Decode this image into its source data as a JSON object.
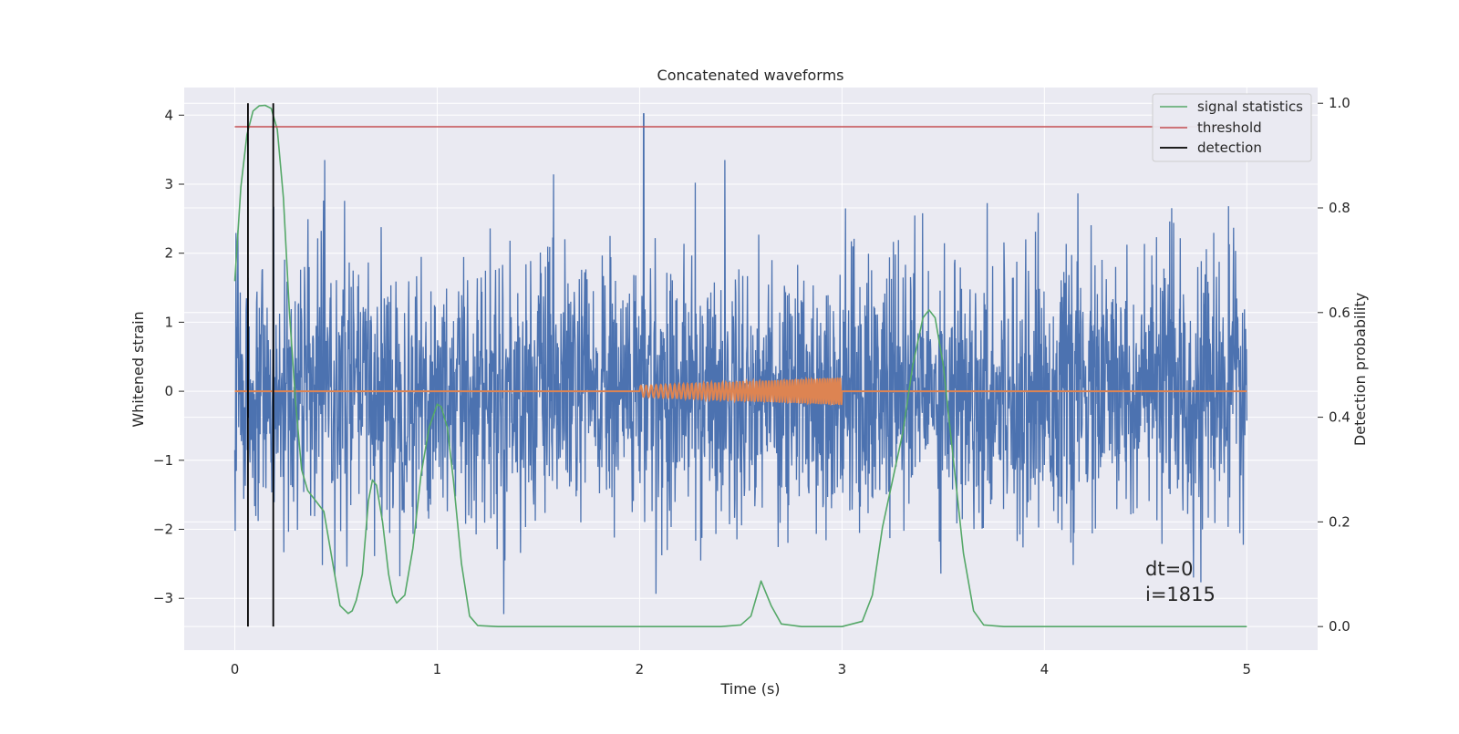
{
  "chart_data": {
    "type": "line",
    "title": "Concatenated waveforms",
    "xlabel": "Time (s)",
    "ylabel": "Whitened strain",
    "y2label": "Detection probability",
    "xlim": [
      -0.25,
      5.35
    ],
    "ylim": [
      -3.75,
      4.4
    ],
    "y2lim": [
      -0.045,
      1.03
    ],
    "xticks": [
      0,
      1,
      2,
      3,
      4,
      5
    ],
    "yticks": [
      -3,
      -2,
      -1,
      0,
      1,
      2,
      3,
      4
    ],
    "y2ticks": [
      0.0,
      0.2,
      0.4,
      0.6,
      0.8,
      1.0
    ],
    "xtick_labels": [
      "0",
      "1",
      "2",
      "3",
      "4",
      "5"
    ],
    "ytick_labels": [
      "−3",
      "−2",
      "−1",
      "0",
      "1",
      "2",
      "3",
      "4"
    ],
    "y2tick_labels": [
      "0.0",
      "0.2",
      "0.4",
      "0.6",
      "0.8",
      "1.0"
    ],
    "grid": true,
    "legend_position": "top-right",
    "legend": [
      "signal statistics",
      "threshold",
      "detection"
    ],
    "colors": {
      "strain": "#4c72b0",
      "template": "#dd8452",
      "signal_statistics": "#55a868",
      "threshold": "#c44e52",
      "detection": "#000000",
      "background": "#eaeaf2"
    },
    "series": [
      {
        "axis": "left",
        "description": "whitened strain noise, 0 to 5 s, peaks about -3.4 to 4.0",
        "x_range": [
          0,
          5
        ],
        "y_range": [
          -3.4,
          4.0
        ],
        "notable_spike": {
          "x": 2.02,
          "y": 4.02
        }
      },
      {
        "axis": "left",
        "description": "injected chirp waveform, flat zero except 2.0 to 3.0 s",
        "x_range": [
          0,
          5
        ],
        "chirp_range": [
          2.0,
          3.0
        ],
        "chirp_amplitude": [
          0.08,
          0.2
        ]
      },
      {
        "name": "signal statistics",
        "axis": "right",
        "x": [
          0.0,
          0.03,
          0.06,
          0.09,
          0.12,
          0.15,
          0.18,
          0.21,
          0.24,
          0.27,
          0.3,
          0.33,
          0.36,
          0.4,
          0.44,
          0.48,
          0.52,
          0.56,
          0.58,
          0.6,
          0.63,
          0.66,
          0.68,
          0.7,
          0.73,
          0.76,
          0.78,
          0.8,
          0.84,
          0.88,
          0.92,
          0.96,
          1.0,
          1.02,
          1.05,
          1.08,
          1.12,
          1.16,
          1.2,
          1.3,
          1.5,
          2.0,
          2.4,
          2.5,
          2.55,
          2.6,
          2.65,
          2.7,
          2.8,
          3.0,
          3.1,
          3.15,
          3.2,
          3.25,
          3.3,
          3.35,
          3.4,
          3.43,
          3.46,
          3.5,
          3.55,
          3.6,
          3.65,
          3.7,
          3.8,
          4.0,
          4.5,
          5.0
        ],
        "values": [
          0.66,
          0.84,
          0.94,
          0.985,
          0.995,
          0.996,
          0.99,
          0.95,
          0.82,
          0.6,
          0.43,
          0.3,
          0.26,
          0.24,
          0.22,
          0.13,
          0.04,
          0.025,
          0.03,
          0.05,
          0.1,
          0.24,
          0.28,
          0.27,
          0.2,
          0.1,
          0.06,
          0.045,
          0.06,
          0.15,
          0.29,
          0.38,
          0.425,
          0.42,
          0.38,
          0.28,
          0.12,
          0.02,
          0.002,
          0.0,
          0.0,
          0.0,
          0.0,
          0.003,
          0.02,
          0.087,
          0.04,
          0.005,
          0.0,
          0.0,
          0.01,
          0.06,
          0.19,
          0.28,
          0.37,
          0.5,
          0.59,
          0.605,
          0.59,
          0.5,
          0.32,
          0.14,
          0.03,
          0.003,
          0.0,
          0.0,
          0.0,
          0.0
        ]
      },
      {
        "name": "threshold",
        "axis": "right",
        "x": [
          0,
          5
        ],
        "values": [
          0.955,
          0.955
        ]
      },
      {
        "name": "detection",
        "axis": "right",
        "vlines_x": [
          0.065,
          0.19
        ],
        "y_range": [
          0.0,
          1.0
        ]
      }
    ],
    "annotations": [
      "dt=0",
      "i=1815"
    ]
  }
}
